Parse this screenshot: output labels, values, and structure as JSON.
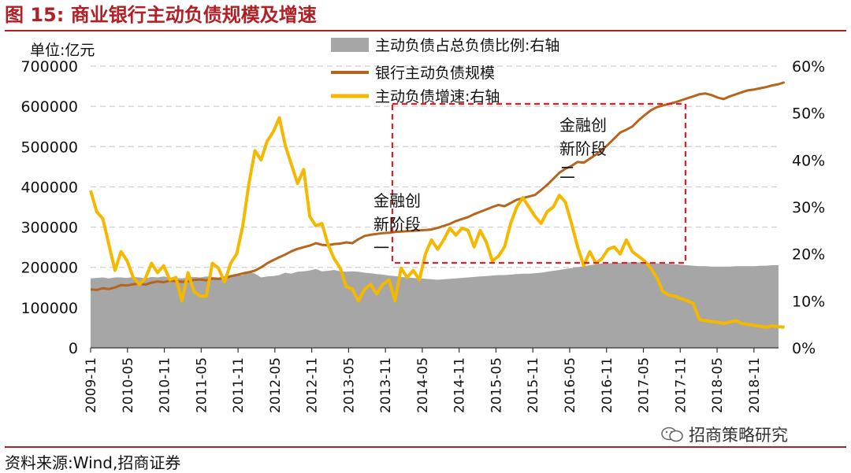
{
  "header": {
    "title": "图 15:  商业银行主动负债规模及增速"
  },
  "footer": {
    "source": "资料来源:Wind,招商证券",
    "watermark": "招商策略研究"
  },
  "chart_data": {
    "type": "line",
    "unit_label": "单位:亿元",
    "legend": [
      "主动负债占总负债比例:右轴",
      "银行主动负债规模",
      "主动负债增速:右轴"
    ],
    "y_left": {
      "min": 0,
      "max": 700000,
      "ticks": [
        "0",
        "100000",
        "200000",
        "300000",
        "400000",
        "500000",
        "600000",
        "700000"
      ]
    },
    "y_right": {
      "min": 0,
      "max": 0.6,
      "ticks": [
        "0%",
        "10%",
        "20%",
        "30%",
        "40%",
        "50%",
        "60%"
      ]
    },
    "x_start": "2009-11",
    "x_end": "2019-03",
    "x_ticks": [
      "2009-11",
      "2010-05",
      "2010-11",
      "2011-05",
      "2011-11",
      "2012-05",
      "2012-11",
      "2013-05",
      "2013-11",
      "2014-05",
      "2014-11",
      "2015-05",
      "2015-11",
      "2016-05",
      "2016-11",
      "2017-05",
      "2017-11",
      "2018-05",
      "2018-11"
    ],
    "series": [
      {
        "name": "主动负债占总负债比例:右轴",
        "axis": "right",
        "kind": "area",
        "color": "#a6a6a6",
        "values": [
          0.148,
          0.149,
          0.15,
          0.148,
          0.15,
          0.15,
          0.149,
          0.151,
          0.15,
          0.148,
          0.151,
          0.15,
          0.152,
          0.15,
          0.149,
          0.148,
          0.15,
          0.151,
          0.15,
          0.152,
          0.151,
          0.15,
          0.152,
          0.153,
          0.154,
          0.155,
          0.162,
          0.158,
          0.15,
          0.152,
          0.153,
          0.155,
          0.16,
          0.158,
          0.162,
          0.163,
          0.165,
          0.168,
          0.163,
          0.164,
          0.166,
          0.163,
          0.162,
          0.163,
          0.162,
          0.16,
          0.159,
          0.157,
          0.156,
          0.154,
          0.153,
          0.151,
          0.15,
          0.149,
          0.148,
          0.147,
          0.146,
          0.145,
          0.146,
          0.147,
          0.148,
          0.149,
          0.15,
          0.151,
          0.152,
          0.153,
          0.154,
          0.155,
          0.155,
          0.156,
          0.157,
          0.158,
          0.158,
          0.159,
          0.16,
          0.162,
          0.164,
          0.166,
          0.168,
          0.17,
          0.172,
          0.174,
          0.176,
          0.178,
          0.18,
          0.18,
          0.181,
          0.181,
          0.182,
          0.182,
          0.182,
          0.181,
          0.181,
          0.18,
          0.18,
          0.179,
          0.178,
          0.177,
          0.176,
          0.175,
          0.174,
          0.174,
          0.173,
          0.173,
          0.173,
          0.173,
          0.174,
          0.174,
          0.174,
          0.174,
          0.175,
          0.175,
          0.176,
          0.176
        ]
      },
      {
        "name": "银行主动负债规模",
        "axis": "left",
        "kind": "line",
        "color": "#b5651d",
        "values": [
          145000,
          144000,
          148000,
          146000,
          150000,
          156000,
          155000,
          158000,
          160000,
          157000,
          162000,
          165000,
          163000,
          167000,
          166000,
          164000,
          165000,
          169000,
          170000,
          168000,
          172000,
          171000,
          174000,
          178000,
          181000,
          185000,
          188000,
          192000,
          200000,
          210000,
          218000,
          225000,
          232000,
          240000,
          246000,
          250000,
          254000,
          260000,
          256000,
          255000,
          258000,
          259000,
          262000,
          260000,
          270000,
          278000,
          281000,
          283000,
          285000,
          286000,
          288000,
          289000,
          290000,
          291000,
          292000,
          293000,
          294000,
          298000,
          303000,
          308000,
          315000,
          320000,
          325000,
          332000,
          338000,
          344000,
          350000,
          355000,
          352000,
          360000,
          368000,
          372000,
          376000,
          380000,
          392000,
          405000,
          420000,
          435000,
          445000,
          452000,
          462000,
          460000,
          470000,
          480000,
          492000,
          505000,
          520000,
          535000,
          542000,
          550000,
          565000,
          578000,
          590000,
          598000,
          602000,
          606000,
          610000,
          615000,
          620000,
          625000,
          630000,
          632000,
          628000,
          622000,
          618000,
          625000,
          630000,
          635000,
          640000,
          642000,
          645000,
          648000,
          652000,
          655000,
          660000
        ]
      },
      {
        "name": "主动负债增速:右轴",
        "axis": "right",
        "kind": "line",
        "color": "#f5b800",
        "values": [
          0.335,
          0.29,
          0.275,
          0.22,
          0.165,
          0.205,
          0.185,
          0.15,
          0.135,
          0.148,
          0.18,
          0.16,
          0.175,
          0.145,
          0.15,
          0.1,
          0.16,
          0.12,
          0.11,
          0.11,
          0.18,
          0.17,
          0.14,
          0.18,
          0.2,
          0.26,
          0.35,
          0.42,
          0.4,
          0.44,
          0.46,
          0.49,
          0.43,
          0.39,
          0.35,
          0.38,
          0.28,
          0.26,
          0.265,
          0.22,
          0.19,
          0.17,
          0.13,
          0.125,
          0.1,
          0.125,
          0.135,
          0.115,
          0.135,
          0.145,
          0.1,
          0.17,
          0.15,
          0.165,
          0.145,
          0.2,
          0.23,
          0.21,
          0.23,
          0.255,
          0.24,
          0.255,
          0.25,
          0.215,
          0.25,
          0.225,
          0.185,
          0.195,
          0.215,
          0.265,
          0.3,
          0.32,
          0.3,
          0.28,
          0.265,
          0.29,
          0.3,
          0.325,
          0.31,
          0.265,
          0.215,
          0.175,
          0.205,
          0.18,
          0.19,
          0.21,
          0.215,
          0.2,
          0.23,
          0.205,
          0.195,
          0.185,
          0.17,
          0.15,
          0.12,
          0.112,
          0.11,
          0.105,
          0.1,
          0.095,
          0.06,
          0.058,
          0.056,
          0.055,
          0.052,
          0.055,
          0.058,
          0.052,
          0.05,
          0.048,
          0.046,
          0.044,
          0.047,
          0.045,
          0.044
        ]
      }
    ],
    "annotations": [
      {
        "lines": [
          "金融创",
          "新阶段",
          "一"
        ]
      },
      {
        "lines": [
          "金融创",
          "新阶段",
          "二"
        ]
      }
    ]
  }
}
